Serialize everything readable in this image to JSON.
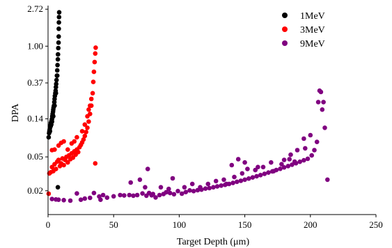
{
  "chart_data": {
    "type": "scatter",
    "xlabel": "Target Depth (μm)",
    "ylabel": "DPA",
    "xlim": [
      0,
      250
    ],
    "ylim": [
      0.0105,
      3.0
    ],
    "yscale": "log",
    "x_ticks": [
      0,
      50,
      100,
      150,
      200,
      250
    ],
    "y_ticks": [
      {
        "value": 0.02,
        "label": "0.02"
      },
      {
        "value": 0.05,
        "label": "0.05"
      },
      {
        "value": 0.14,
        "label": "0.14"
      },
      {
        "value": 0.37,
        "label": "0.37"
      },
      {
        "value": 1.0,
        "label": "1.00"
      },
      {
        "value": 2.72,
        "label": "2.72"
      }
    ],
    "grid": false,
    "legend_position": "top-right",
    "series": [
      {
        "name": "1MeV",
        "color": "#000000",
        "points": [
          [
            0.5,
            0.085
          ],
          [
            0.8,
            0.095
          ],
          [
            1.0,
            0.1
          ],
          [
            1.3,
            0.105
          ],
          [
            1.5,
            0.11
          ],
          [
            1.8,
            0.115
          ],
          [
            2.0,
            0.12
          ],
          [
            2.2,
            0.125
          ],
          [
            2.5,
            0.13
          ],
          [
            2.8,
            0.135
          ],
          [
            3.0,
            0.14
          ],
          [
            3.2,
            0.15
          ],
          [
            3.5,
            0.16
          ],
          [
            3.8,
            0.17
          ],
          [
            4.0,
            0.18
          ],
          [
            4.2,
            0.19
          ],
          [
            4.5,
            0.2
          ],
          [
            4.8,
            0.22
          ],
          [
            5.0,
            0.24
          ],
          [
            5.2,
            0.26
          ],
          [
            5.5,
            0.28
          ],
          [
            5.8,
            0.3
          ],
          [
            6.0,
            0.33
          ],
          [
            6.2,
            0.36
          ],
          [
            6.5,
            0.4
          ],
          [
            6.8,
            0.45
          ],
          [
            7.0,
            0.52
          ],
          [
            7.2,
            0.6
          ],
          [
            7.5,
            0.7
          ],
          [
            7.6,
            0.8
          ],
          [
            7.8,
            0.95
          ],
          [
            8.0,
            1.1
          ],
          [
            8.1,
            1.3
          ],
          [
            8.2,
            1.6
          ],
          [
            8.3,
            1.9
          ],
          [
            8.4,
            2.2
          ],
          [
            8.5,
            2.5
          ],
          [
            2.0,
            0.115
          ],
          [
            3.0,
            0.13
          ],
          [
            4.0,
            0.15
          ],
          [
            5.0,
            0.2
          ],
          [
            6.0,
            0.28
          ],
          [
            7.0,
            0.45
          ],
          [
            1.5,
            0.1
          ],
          [
            2.5,
            0.12
          ],
          [
            7.5,
            0.022
          ]
        ]
      },
      {
        "name": "3MeV",
        "color": "#ff0000",
        "points": [
          [
            0.5,
            0.0185
          ],
          [
            1.0,
            0.032
          ],
          [
            2.0,
            0.033
          ],
          [
            3.0,
            0.038
          ],
          [
            4.0,
            0.034
          ],
          [
            5.0,
            0.041
          ],
          [
            6.0,
            0.036
          ],
          [
            7.0,
            0.044
          ],
          [
            8.0,
            0.046
          ],
          [
            9.0,
            0.039
          ],
          [
            10.0,
            0.042
          ],
          [
            11.0,
            0.048
          ],
          [
            12.0,
            0.04
          ],
          [
            13.0,
            0.046
          ],
          [
            14.0,
            0.05
          ],
          [
            15.0,
            0.043
          ],
          [
            16.0,
            0.052
          ],
          [
            17.0,
            0.047
          ],
          [
            18.0,
            0.055
          ],
          [
            19.0,
            0.049
          ],
          [
            20.0,
            0.058
          ],
          [
            21.0,
            0.053
          ],
          [
            22.0,
            0.061
          ],
          [
            23.0,
            0.057
          ],
          [
            24.0,
            0.065
          ],
          [
            25.0,
            0.069
          ],
          [
            26.0,
            0.074
          ],
          [
            27.0,
            0.08
          ],
          [
            28.0,
            0.088
          ],
          [
            29.0,
            0.098
          ],
          [
            30.0,
            0.11
          ],
          [
            31.0,
            0.13
          ],
          [
            32.0,
            0.16
          ],
          [
            33.0,
            0.2
          ],
          [
            34.0,
            0.28
          ],
          [
            34.5,
            0.38
          ],
          [
            35.0,
            0.5
          ],
          [
            35.5,
            0.65
          ],
          [
            36.0,
            0.82
          ],
          [
            36.3,
            0.96
          ],
          [
            36.0,
            0.042
          ],
          [
            3.0,
            0.06
          ],
          [
            5.0,
            0.061
          ],
          [
            8.0,
            0.068
          ],
          [
            10.0,
            0.073
          ],
          [
            12.0,
            0.076
          ],
          [
            15.0,
            0.061
          ],
          [
            18.0,
            0.072
          ],
          [
            20.0,
            0.076
          ],
          [
            22.0,
            0.085
          ],
          [
            26.0,
            0.1
          ],
          [
            28.0,
            0.12
          ],
          [
            30.0,
            0.15
          ],
          [
            31.0,
            0.18
          ],
          [
            32.0,
            0.2
          ],
          [
            33.0,
            0.24
          ]
        ]
      },
      {
        "name": "9MeV",
        "color": "#800080",
        "points": [
          [
            3,
            0.016
          ],
          [
            6,
            0.0158
          ],
          [
            8,
            0.0157
          ],
          [
            12,
            0.0155
          ],
          [
            17,
            0.0153
          ],
          [
            22,
            0.0186
          ],
          [
            25,
            0.0157
          ],
          [
            28,
            0.0162
          ],
          [
            32,
            0.0165
          ],
          [
            35,
            0.0188
          ],
          [
            39,
            0.0171
          ],
          [
            42,
            0.0178
          ],
          [
            45,
            0.0166
          ],
          [
            50,
            0.0172
          ],
          [
            55,
            0.0178
          ],
          [
            58,
            0.0176
          ],
          [
            62,
            0.0178
          ],
          [
            65,
            0.0175
          ],
          [
            68,
            0.0178
          ],
          [
            72,
            0.0186
          ],
          [
            75,
            0.0175
          ],
          [
            77,
            0.0188
          ],
          [
            79,
            0.0177
          ],
          [
            80,
            0.0183
          ],
          [
            82,
            0.0167
          ],
          [
            85,
            0.0178
          ],
          [
            88,
            0.0183
          ],
          [
            90,
            0.0192
          ],
          [
            93,
            0.0188
          ],
          [
            96,
            0.0182
          ],
          [
            99,
            0.0198
          ],
          [
            102,
            0.0185
          ],
          [
            105,
            0.0193
          ],
          [
            108,
            0.0202
          ],
          [
            111,
            0.0198
          ],
          [
            114,
            0.0203
          ],
          [
            117,
            0.0206
          ],
          [
            120,
            0.0212
          ],
          [
            123,
            0.0215
          ],
          [
            126,
            0.022
          ],
          [
            129,
            0.0225
          ],
          [
            132,
            0.023
          ],
          [
            135,
            0.0235
          ],
          [
            138,
            0.024
          ],
          [
            141,
            0.0247
          ],
          [
            144,
            0.0255
          ],
          [
            147,
            0.0262
          ],
          [
            150,
            0.027
          ],
          [
            153,
            0.0278
          ],
          [
            156,
            0.0287
          ],
          [
            159,
            0.0296
          ],
          [
            162,
            0.0306
          ],
          [
            165,
            0.0316
          ],
          [
            168,
            0.0327
          ],
          [
            171,
            0.0338
          ],
          [
            174,
            0.035
          ],
          [
            177,
            0.0362
          ],
          [
            180,
            0.0376
          ],
          [
            183,
            0.039
          ],
          [
            186,
            0.0405
          ],
          [
            189,
            0.0421
          ],
          [
            192,
            0.0438
          ],
          [
            195,
            0.0456
          ],
          [
            198,
            0.0475
          ],
          [
            201,
            0.052
          ],
          [
            203,
            0.06
          ],
          [
            205,
            0.075
          ],
          [
            206,
            0.22
          ],
          [
            207,
            0.3
          ],
          [
            208,
            0.29
          ],
          [
            209,
            0.18
          ],
          [
            210,
            0.22
          ],
          [
            211,
            0.11
          ],
          [
            213,
            0.027
          ],
          [
            76,
            0.036
          ],
          [
            95,
            0.028
          ],
          [
            110,
            0.024
          ],
          [
            140,
            0.04
          ],
          [
            145,
            0.047
          ],
          [
            150,
            0.043
          ],
          [
            160,
            0.038
          ],
          [
            170,
            0.043
          ],
          [
            180,
            0.046
          ],
          [
            185,
            0.053
          ],
          [
            190,
            0.06
          ],
          [
            195,
            0.082
          ],
          [
            200,
            0.09
          ],
          [
            63,
            0.025
          ],
          [
            70,
            0.027
          ],
          [
            74,
            0.022
          ],
          [
            86,
            0.022
          ],
          [
            92,
            0.021
          ],
          [
            104,
            0.022
          ],
          [
            116,
            0.022
          ],
          [
            122,
            0.024
          ],
          [
            128,
            0.026
          ],
          [
            134,
            0.027
          ],
          [
            136,
            0.024
          ],
          [
            142,
            0.029
          ],
          [
            148,
            0.032
          ],
          [
            152,
            0.036
          ],
          [
            158,
            0.035
          ],
          [
            164,
            0.038
          ],
          [
            172,
            0.034
          ],
          [
            178,
            0.041
          ],
          [
            184,
            0.047
          ],
          [
            188,
            0.044
          ],
          [
            196,
            0.063
          ],
          [
            40,
            0.0157
          ]
        ]
      }
    ]
  }
}
